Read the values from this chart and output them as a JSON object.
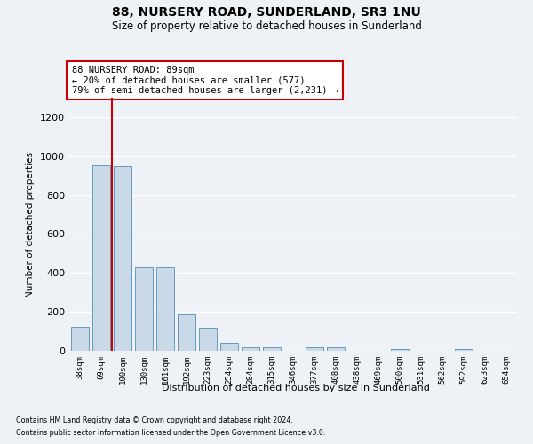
{
  "title": "88, NURSERY ROAD, SUNDERLAND, SR3 1NU",
  "subtitle": "Size of property relative to detached houses in Sunderland",
  "xlabel": "Distribution of detached houses by size in Sunderland",
  "ylabel": "Number of detached properties",
  "bar_color": "#c9d9e8",
  "bar_edge_color": "#6699bb",
  "categories": [
    "38sqm",
    "69sqm",
    "100sqm",
    "130sqm",
    "161sqm",
    "192sqm",
    "223sqm",
    "254sqm",
    "284sqm",
    "315sqm",
    "346sqm",
    "377sqm",
    "408sqm",
    "438sqm",
    "469sqm",
    "500sqm",
    "531sqm",
    "562sqm",
    "592sqm",
    "623sqm",
    "654sqm"
  ],
  "values": [
    125,
    955,
    950,
    430,
    430,
    185,
    120,
    42,
    20,
    20,
    0,
    18,
    16,
    0,
    0,
    10,
    0,
    0,
    10,
    0,
    0
  ],
  "ylim": [
    0,
    1300
  ],
  "yticks": [
    0,
    200,
    400,
    600,
    800,
    1000,
    1200
  ],
  "property_line_x": 1.5,
  "annotation_line1": "88 NURSERY ROAD: 89sqm",
  "annotation_line2": "← 20% of detached houses are smaller (577)",
  "annotation_line3": "79% of semi-detached houses are larger (2,231) →",
  "annotation_box_facecolor": "#ffffff",
  "annotation_box_edgecolor": "#cc0000",
  "red_line_color": "#cc0000",
  "footer_line1": "Contains HM Land Registry data © Crown copyright and database right 2024.",
  "footer_line2": "Contains public sector information licensed under the Open Government Licence v3.0.",
  "bg_color": "#eef2f7",
  "grid_color": "#e8eef5"
}
